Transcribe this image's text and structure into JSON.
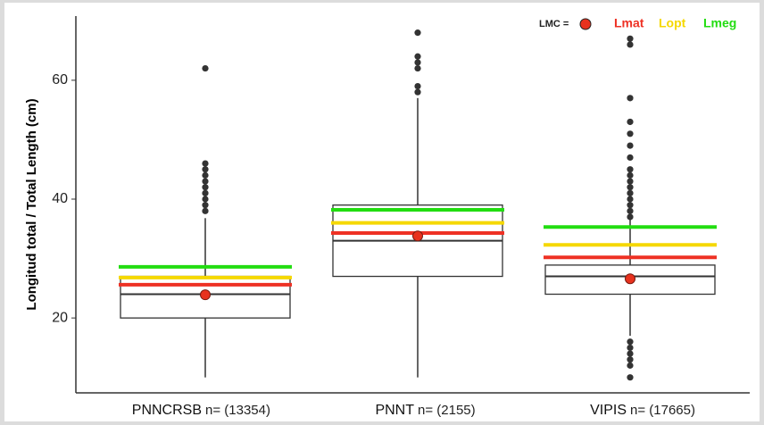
{
  "chart_data": {
    "type": "box",
    "y_label": "Longitud total / Total Length (cm)",
    "categories": [
      "PNNCRSB",
      "PNNT",
      "VIPIS"
    ],
    "n_labels": [
      "n= (13354)",
      "n= (2155)",
      "n= (17665)"
    ],
    "ylim": [
      7.4,
      70.8
    ],
    "yticks": [
      20,
      40,
      60
    ],
    "box_color": "#333333",
    "boxes": [
      {
        "whislo": 10,
        "q1": 20,
        "median": 24,
        "q3": 27,
        "whishi": 36.8,
        "outliers": [
          62,
          46,
          45,
          44,
          43,
          42,
          41,
          40,
          39,
          38
        ]
      },
      {
        "whislo": 10,
        "q1": 27,
        "median": 33,
        "q3": 39,
        "whishi": 57,
        "outliers": [
          68,
          64,
          63,
          62,
          59,
          58
        ]
      },
      {
        "whislo": 17,
        "q1": 24,
        "median": 27,
        "q3": 28.9,
        "whishi": 36.7,
        "outliers": [
          67,
          66,
          57,
          53,
          51,
          49,
          47,
          45,
          44,
          43,
          42,
          41,
          40,
          39,
          38,
          37,
          16,
          15,
          14,
          13,
          12,
          10
        ]
      }
    ],
    "series": [
      {
        "name": "Lmat",
        "color": "#ee3124",
        "values": [
          25.6,
          34.3,
          30.2
        ]
      },
      {
        "name": "Lopt",
        "color": "#f5d800",
        "values": [
          26.8,
          36,
          32.3
        ]
      },
      {
        "name": "Lmeg",
        "color": "#22dd11",
        "values": [
          28.6,
          38.2,
          35.3
        ]
      }
    ],
    "lmc": {
      "name": "LMC =",
      "color": "#e8321e",
      "values": [
        23.9,
        33.8,
        26.6
      ]
    }
  }
}
